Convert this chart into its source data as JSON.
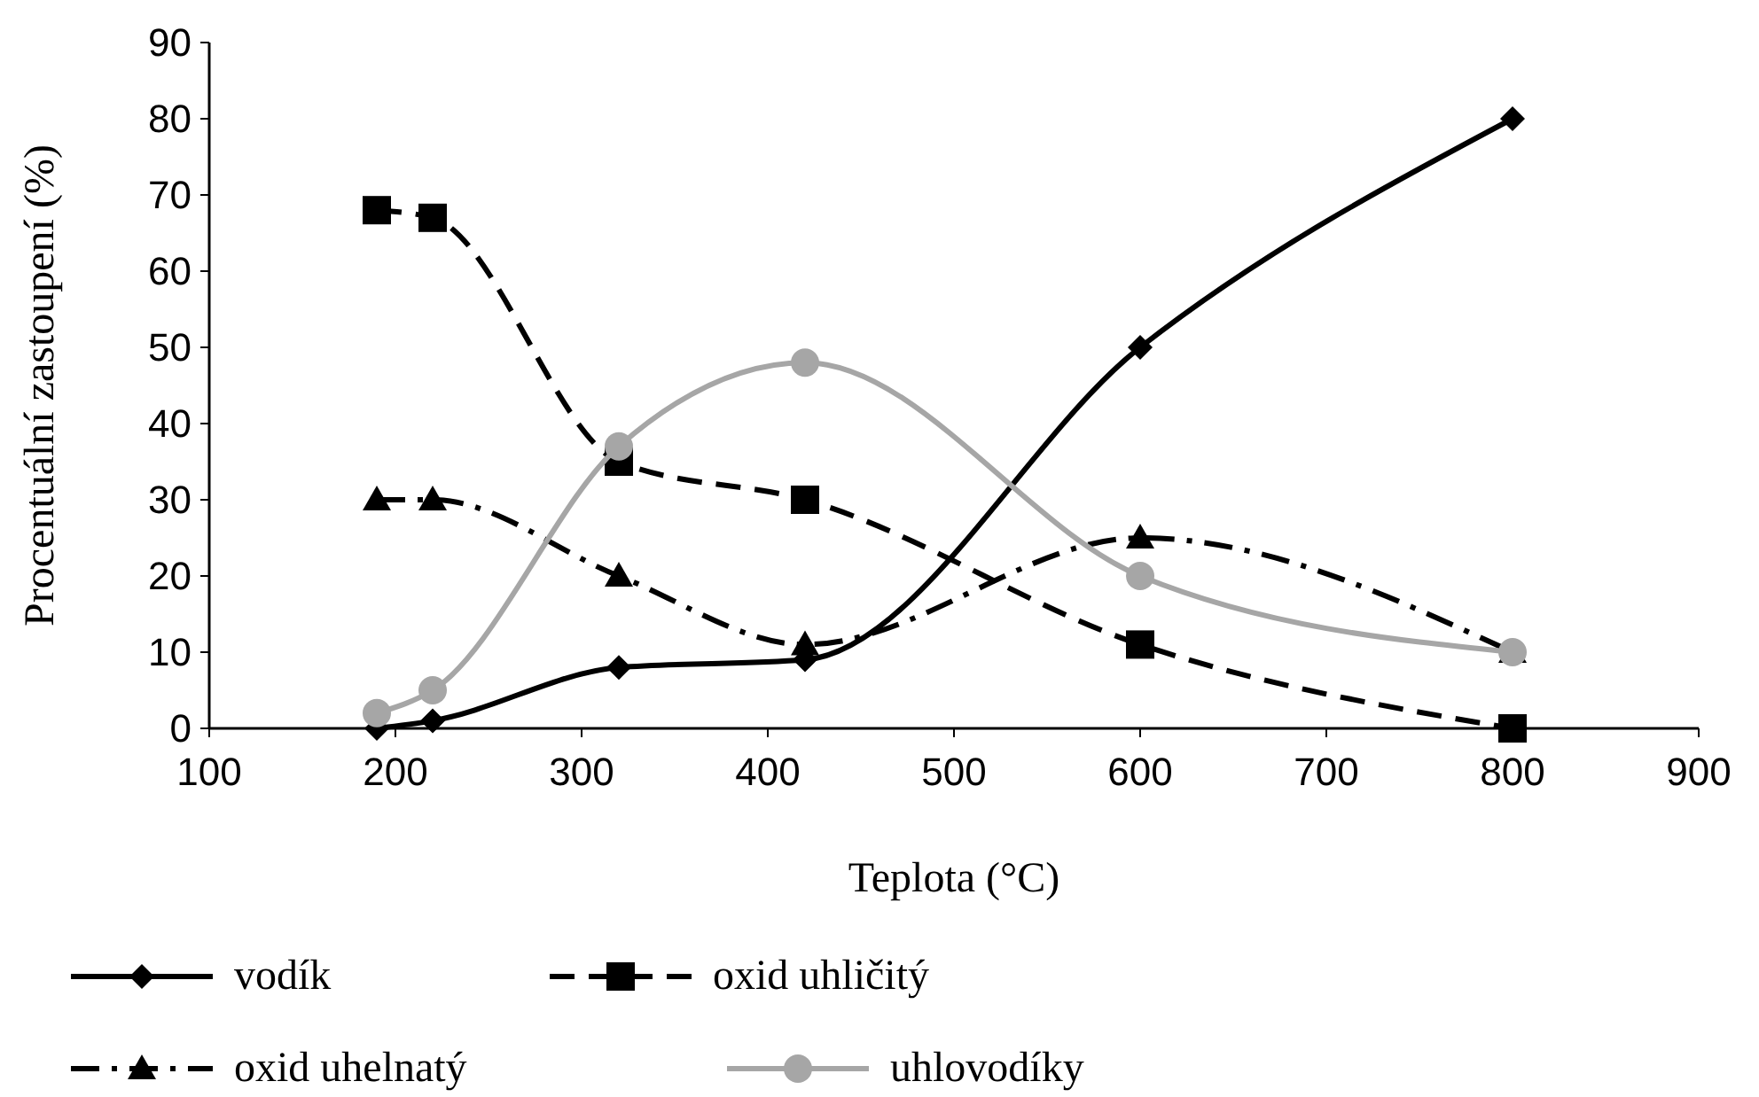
{
  "chart_data": {
    "type": "line",
    "xlabel": "Teplota (°C)",
    "ylabel": "Procentuální zastoupení (%)",
    "xlim": [
      100,
      900
    ],
    "xticks": [
      100,
      200,
      300,
      400,
      500,
      600,
      700,
      800,
      900
    ],
    "ylim": [
      0,
      90
    ],
    "yticks": [
      0,
      10,
      20,
      30,
      40,
      50,
      60,
      70,
      80,
      90
    ],
    "x": [
      190,
      220,
      320,
      420,
      600,
      800
    ],
    "grid": false,
    "legend": "bottom",
    "series": [
      {
        "name": "vodík",
        "color": "#000000",
        "marker": "diamond",
        "line_style": "solid",
        "values": [
          0,
          1,
          8,
          9,
          50,
          80
        ]
      },
      {
        "name": "oxid uhličitý",
        "color": "#000000",
        "marker": "square",
        "line_style": "dashed",
        "values": [
          68,
          67,
          35,
          30,
          11,
          0
        ]
      },
      {
        "name": "oxid uhelnatý",
        "color": "#000000",
        "marker": "triangle",
        "line_style": "dashdot",
        "values": [
          30,
          30,
          20,
          11,
          25,
          10
        ]
      },
      {
        "name": "uhlovodíky",
        "color": "#a6a6a6",
        "marker": "circle",
        "line_style": "solid",
        "values": [
          2,
          5,
          37,
          48,
          20,
          10
        ]
      }
    ]
  }
}
